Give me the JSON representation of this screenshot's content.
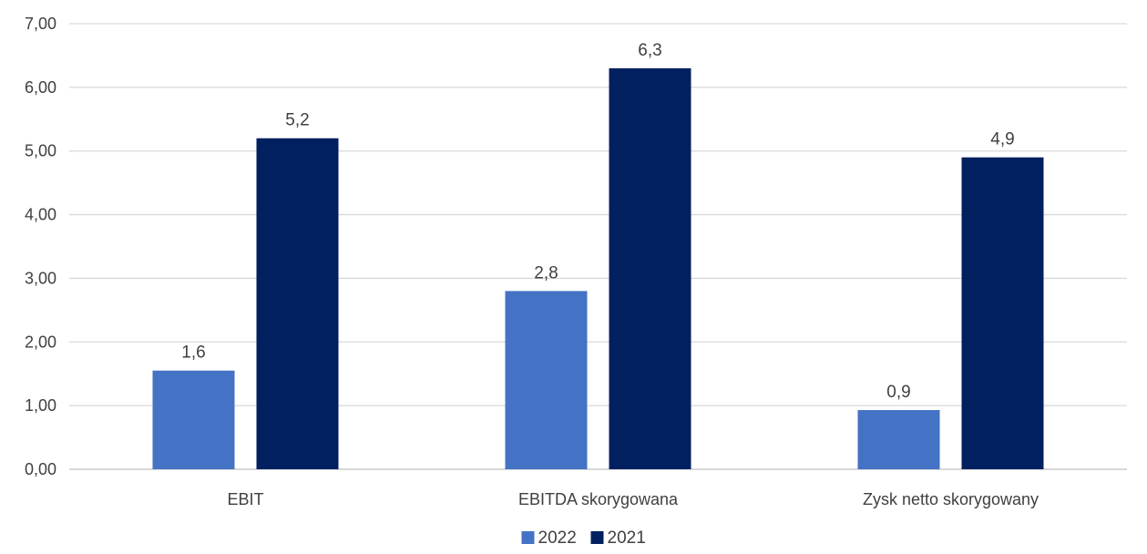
{
  "chart_data": {
    "type": "bar",
    "categories": [
      "EBIT",
      "EBITDA skorygowana",
      "Zysk netto skorygowany"
    ],
    "series": [
      {
        "name": "2022",
        "values": [
          1.55,
          2.8,
          0.93
        ],
        "labels": [
          "1,6",
          "2,8",
          "0,9"
        ],
        "color": "#4472C4"
      },
      {
        "name": "2021",
        "values": [
          5.2,
          6.3,
          4.9
        ],
        "labels": [
          "5,2",
          "6,3",
          "4,9"
        ],
        "color": "#002060"
      }
    ],
    "ylim": [
      0,
      7
    ],
    "yticks": [
      0,
      1,
      2,
      3,
      4,
      5,
      6,
      7
    ],
    "ytick_labels": [
      "0,00",
      "1,00",
      "2,00",
      "3,00",
      "4,00",
      "5,00",
      "6,00",
      "7,00"
    ],
    "grid": true,
    "gridline_color": "#D9D9D9",
    "legend_position": "bottom-center",
    "title": "",
    "xlabel": "",
    "ylabel": ""
  }
}
